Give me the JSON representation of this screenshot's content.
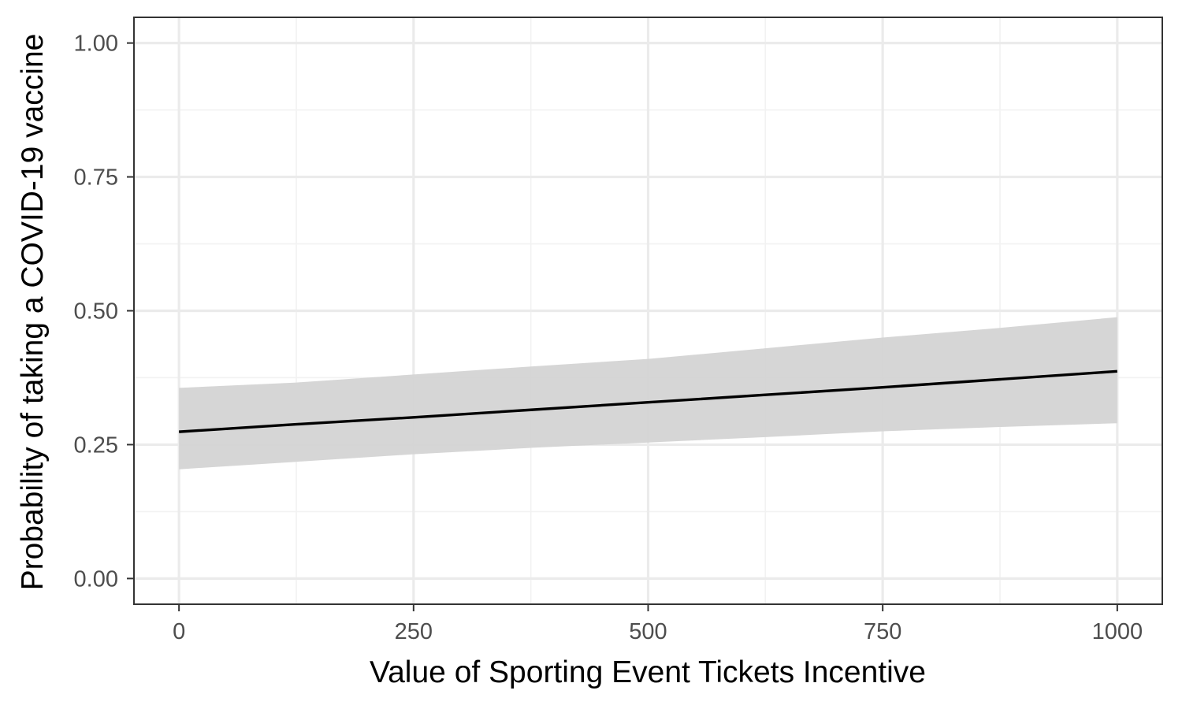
{
  "chart_data": {
    "type": "line",
    "title": "",
    "xlabel": "Value of Sporting Event Tickets Incentive",
    "ylabel": "Probability of taking a COVID-19 vaccine",
    "xlim": [
      -48,
      1048
    ],
    "ylim": [
      -0.048,
      1.048
    ],
    "x_ticks": [
      0,
      250,
      500,
      750,
      1000
    ],
    "x_tick_labels": [
      "0",
      "250",
      "500",
      "750",
      "1000"
    ],
    "y_ticks": [
      0,
      0.25,
      0.5,
      0.75,
      1.0
    ],
    "y_tick_labels": [
      "0.00",
      "0.25",
      "0.50",
      "0.75",
      "1.00"
    ],
    "grid": true,
    "legend": "none",
    "series": [
      {
        "x": [
          0,
          125,
          250,
          375,
          500,
          625,
          750,
          875,
          1000
        ],
        "y": [
          0.274,
          0.288,
          0.301,
          0.315,
          0.329,
          0.343,
          0.357,
          0.372,
          0.387
        ],
        "lower": [
          0.204,
          0.218,
          0.232,
          0.244,
          0.254,
          0.264,
          0.275,
          0.283,
          0.29
        ],
        "upper": [
          0.356,
          0.366,
          0.381,
          0.396,
          0.41,
          0.43,
          0.45,
          0.468,
          0.488
        ],
        "line_color": "#000000",
        "band_color": "#d3d3d3"
      }
    ],
    "colors": {
      "panel_border": "#333333",
      "grid_major": "#ebebeb",
      "grid_minor": "#f2f2f2",
      "tick_mark": "#333333",
      "tick_text": "#4d4d4d"
    }
  }
}
